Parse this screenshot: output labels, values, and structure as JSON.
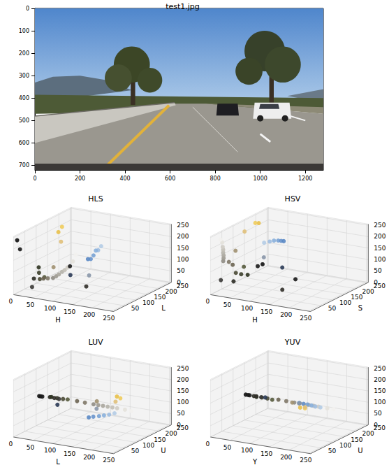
{
  "chart_data": [
    {
      "type": "image",
      "title": "test1.jpg",
      "xlim": [
        0,
        1280
      ],
      "ylim": [
        720,
        0
      ],
      "xticks": [
        0,
        200,
        400,
        600,
        800,
        1000,
        1200
      ],
      "yticks": [
        0,
        100,
        200,
        300,
        400,
        500,
        600,
        700
      ]
    },
    {
      "type": "scatter3d",
      "title": "HLS",
      "x_label": "H",
      "y_label": "L",
      "xlim": [
        0,
        255
      ],
      "ylim": [
        0,
        255
      ],
      "zlim": [
        0,
        255
      ],
      "xticks": [
        0,
        50,
        100,
        150,
        200,
        250
      ],
      "yticks": [
        50,
        100,
        150,
        200,
        250
      ],
      "zticks": [
        0,
        50,
        100,
        150,
        200,
        250
      ],
      "x": [
        5,
        0,
        30,
        40,
        35,
        30,
        36,
        22,
        21,
        21,
        22,
        22,
        22,
        22,
        22,
        22,
        20,
        106,
        107,
        108,
        108,
        105,
        107,
        108,
        22,
        22,
        20,
        106,
        15,
        20,
        130,
        160
      ],
      "y": [
        20,
        16,
        38,
        42,
        52,
        64,
        74,
        94,
        115,
        138,
        150,
        162,
        176,
        188,
        200,
        224,
        240,
        190,
        178,
        166,
        154,
        205,
        143,
        64,
        160,
        176,
        175,
        150,
        56,
        142,
        24,
        44
      ],
      "z": [
        190,
        230,
        60,
        110,
        80,
        45,
        50,
        30,
        20,
        10,
        12,
        14,
        18,
        20,
        25,
        40,
        60,
        130,
        135,
        120,
        110,
        140,
        115,
        85,
        200,
        215,
        150,
        40,
        10,
        55,
        150,
        60
      ],
      "colors": [
        "#1a1a1a",
        "#101010",
        "#2a2a22",
        "#2e3320",
        "#3b3e2a",
        "#4a4a35",
        "#555a3c",
        "#6b6452",
        "#7f7868",
        "#8f8c84",
        "#9c9990",
        "#a8a59c",
        "#b5b2aa",
        "#c2bfb6",
        "#cfccc4",
        "#e4e2dc",
        "#f2f1ee",
        "#9dbce0",
        "#8ab0dc",
        "#78a2d4",
        "#6894cc",
        "#b4cce6",
        "#5a88c4",
        "#2a3a55",
        "#e8c04a",
        "#f0cc5c",
        "#e0c07a",
        "#8896a8",
        "#3a3836",
        "#a09070",
        "#181818",
        "#302e28"
      ]
    },
    {
      "type": "scatter3d",
      "title": "HSV",
      "x_label": "H",
      "y_label": "S",
      "xlim": [
        0,
        255
      ],
      "ylim": [
        0,
        255
      ],
      "zlim": [
        0,
        255
      ],
      "xticks": [
        0,
        50,
        100,
        150,
        200,
        250
      ],
      "yticks": [
        50,
        100,
        150,
        200,
        250
      ],
      "zticks": [
        0,
        50,
        100,
        150,
        200,
        250
      ],
      "x": [
        5,
        0,
        30,
        40,
        35,
        30,
        36,
        22,
        21,
        21,
        22,
        22,
        22,
        22,
        22,
        22,
        20,
        106,
        107,
        108,
        108,
        105,
        107,
        108,
        22,
        22,
        20,
        106,
        15,
        20,
        130,
        160
      ],
      "y": [
        200,
        230,
        50,
        95,
        75,
        60,
        85,
        60,
        45,
        20,
        20,
        20,
        18,
        18,
        16,
        14,
        10,
        78,
        95,
        112,
        125,
        55,
        138,
        130,
        175,
        160,
        116,
        52,
        20,
        76,
        150,
        40
      ],
      "z": [
        26,
        18,
        42,
        51,
        62,
        74,
        90,
        107,
        127,
        143,
        156,
        168,
        181,
        194,
        207,
        228,
        242,
        224,
        220,
        212,
        204,
        230,
        196,
        85,
        232,
        240,
        224,
        168,
        58,
        160,
        30,
        48
      ],
      "colors": [
        "#1a1a1a",
        "#101010",
        "#2a2a22",
        "#2e3320",
        "#3b3e2a",
        "#4a4a35",
        "#555a3c",
        "#6b6452",
        "#7f7868",
        "#8f8c84",
        "#9c9990",
        "#a8a59c",
        "#b5b2aa",
        "#c2bfb6",
        "#cfccc4",
        "#e4e2dc",
        "#f2f1ee",
        "#9dbce0",
        "#8ab0dc",
        "#78a2d4",
        "#6894cc",
        "#b4cce6",
        "#5a88c4",
        "#2a3a55",
        "#e8c04a",
        "#f0cc5c",
        "#e0c07a",
        "#8896a8",
        "#3a3836",
        "#a09070",
        "#181818",
        "#302e28"
      ]
    },
    {
      "type": "scatter3d",
      "title": "LUV",
      "x_label": "L",
      "y_label": "U",
      "xlim": [
        0,
        255
      ],
      "ylim": [
        0,
        255
      ],
      "zlim": [
        0,
        255
      ],
      "xticks": [
        0,
        50,
        100,
        150,
        200,
        250
      ],
      "yticks": [
        50,
        100,
        150,
        200,
        250
      ],
      "zticks": [
        0,
        50,
        100,
        150,
        200,
        250
      ],
      "x": [
        18,
        10,
        38,
        45,
        58,
        72,
        86,
        106,
        126,
        148,
        160,
        172,
        184,
        196,
        208,
        228,
        244,
        194,
        182,
        170,
        156,
        206,
        145,
        60,
        200,
        210,
        200,
        158,
        60,
        154,
        14,
        48
      ],
      "y": [
        96,
        96,
        95,
        90,
        92,
        94,
        90,
        97,
        97,
        97,
        97,
        97,
        97,
        97,
        97,
        97,
        97,
        86,
        84,
        83,
        82,
        89,
        81,
        90,
        110,
        108,
        104,
        93,
        97,
        101,
        96,
        97
      ],
      "z": [
        136,
        136,
        140,
        145,
        143,
        142,
        146,
        141,
        140,
        139,
        139,
        139,
        139,
        139,
        139,
        138,
        137,
        112,
        106,
        100,
        94,
        120,
        88,
        115,
        182,
        178,
        162,
        124,
        137,
        152,
        136,
        138
      ],
      "colors": [
        "#1a1a1a",
        "#101010",
        "#2a2a22",
        "#2e3320",
        "#3b3e2a",
        "#4a4a35",
        "#555a3c",
        "#6b6452",
        "#7f7868",
        "#8f8c84",
        "#9c9990",
        "#a8a59c",
        "#b5b2aa",
        "#c2bfb6",
        "#cfccc4",
        "#e4e2dc",
        "#f2f1ee",
        "#9dbce0",
        "#8ab0dc",
        "#78a2d4",
        "#6894cc",
        "#b4cce6",
        "#5a88c4",
        "#2a3a55",
        "#e8c04a",
        "#f0cc5c",
        "#e0c07a",
        "#8896a8",
        "#3a3836",
        "#a09070",
        "#181818",
        "#302e28"
      ]
    },
    {
      "type": "scatter3d",
      "title": "YUV",
      "x_label": "Y",
      "y_label": "U",
      "xlim": [
        0,
        255
      ],
      "ylim": [
        0,
        255
      ],
      "zlim": [
        0,
        255
      ],
      "xticks": [
        0,
        50,
        100,
        150,
        200,
        250
      ],
      "yticks": [
        50,
        100,
        150,
        200,
        250
      ],
      "zticks": [
        0,
        50,
        100,
        150,
        200,
        250
      ],
      "x": [
        26,
        16,
        38,
        47,
        59,
        73,
        87,
        101,
        121,
        141,
        153,
        165,
        178,
        190,
        203,
        225,
        240,
        184,
        171,
        158,
        146,
        200,
        133,
        57,
        187,
        197,
        188,
        148,
        56,
        142,
        22,
        44
      ],
      "y": [
        128,
        128,
        126,
        122,
        124,
        125,
        122,
        125,
        125,
        126,
        126,
        126,
        126,
        126,
        126,
        126,
        127,
        144,
        150,
        155,
        158,
        139,
        162,
        143,
        72,
        76,
        92,
        138,
        127,
        115,
        128,
        126
      ],
      "z": [
        128,
        128,
        129,
        130,
        130,
        129,
        129,
        132,
        131,
        130,
        130,
        130,
        130,
        130,
        130,
        129,
        129,
        116,
        114,
        112,
        110,
        119,
        108,
        120,
        148,
        146,
        140,
        123,
        129,
        136,
        128,
        130
      ],
      "colors": [
        "#1a1a1a",
        "#101010",
        "#2a2a22",
        "#2e3320",
        "#3b3e2a",
        "#4a4a35",
        "#555a3c",
        "#6b6452",
        "#7f7868",
        "#8f8c84",
        "#9c9990",
        "#a8a59c",
        "#b5b2aa",
        "#c2bfb6",
        "#cfccc4",
        "#e4e2dc",
        "#f2f1ee",
        "#9dbce0",
        "#8ab0dc",
        "#78a2d4",
        "#6894cc",
        "#b4cce6",
        "#5a88c4",
        "#2a3a55",
        "#e8c04a",
        "#f0cc5c",
        "#e0c07a",
        "#8896a8",
        "#3a3836",
        "#a09070",
        "#181818",
        "#302e28"
      ]
    }
  ]
}
